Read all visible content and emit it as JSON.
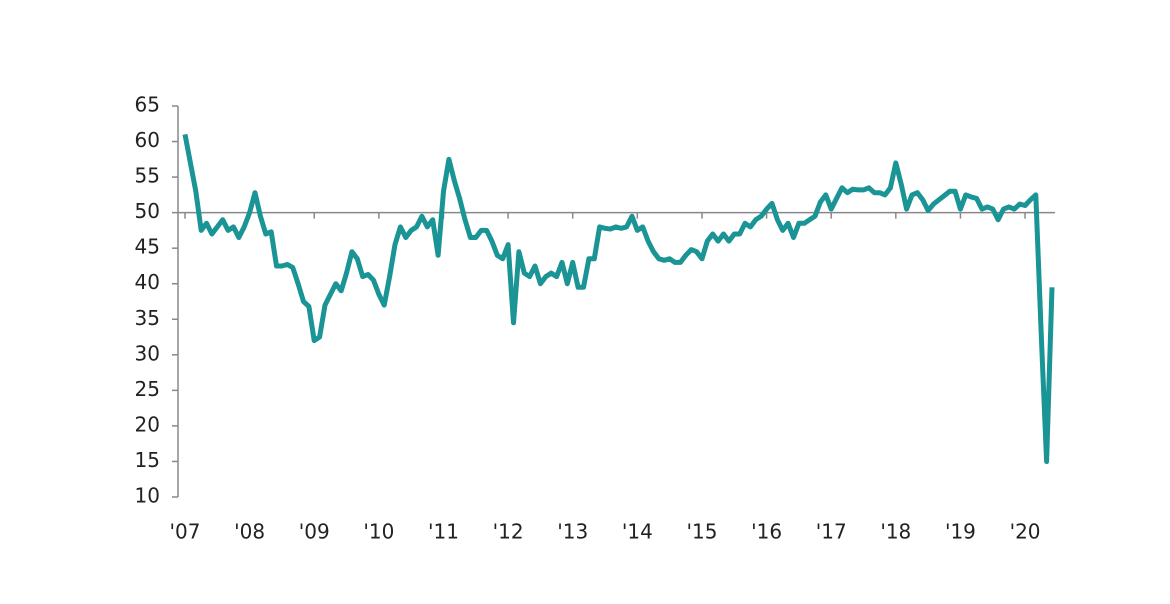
{
  "chart_data": {
    "type": "line",
    "categories": [
      "'07",
      null,
      null,
      null,
      null,
      null,
      null,
      null,
      null,
      null,
      null,
      null,
      "'08",
      null,
      null,
      null,
      null,
      null,
      null,
      null,
      null,
      null,
      null,
      null,
      "'09",
      null,
      null,
      null,
      null,
      null,
      null,
      null,
      null,
      null,
      null,
      null,
      "'10",
      null,
      null,
      null,
      null,
      null,
      null,
      null,
      null,
      null,
      null,
      null,
      "'11",
      null,
      null,
      null,
      null,
      null,
      null,
      null,
      null,
      null,
      null,
      null,
      "'12",
      null,
      null,
      null,
      null,
      null,
      null,
      null,
      null,
      null,
      null,
      null,
      "'13",
      null,
      null,
      null,
      null,
      null,
      null,
      null,
      null,
      null,
      null,
      null,
      "'14",
      null,
      null,
      null,
      null,
      null,
      null,
      null,
      null,
      null,
      null,
      null,
      "'15",
      null,
      null,
      null,
      null,
      null,
      null,
      null,
      null,
      null,
      null,
      null,
      "'16",
      null,
      null,
      null,
      null,
      null,
      null,
      null,
      null,
      null,
      null,
      null,
      "'17",
      null,
      null,
      null,
      null,
      null,
      null,
      null,
      null,
      null,
      null,
      null,
      "'18",
      null,
      null,
      null,
      null,
      null,
      null,
      null,
      null,
      null,
      null,
      null,
      "'19",
      null,
      null,
      null,
      null,
      null,
      null,
      null,
      null,
      null,
      null,
      null,
      "'20",
      null,
      null,
      null,
      null,
      null
    ],
    "values": [
      61,
      57,
      53,
      47.5,
      48.5,
      47,
      48,
      49,
      47.5,
      48,
      46.5,
      48,
      50,
      52.8,
      49.5,
      47,
      47.3,
      42.5,
      42.5,
      42.7,
      42.3,
      40,
      37.5,
      36.8,
      32,
      32.5,
      37,
      38.5,
      40,
      39,
      41.5,
      44.5,
      43.5,
      41,
      41.3,
      40.5,
      38.5,
      37,
      41,
      45.5,
      48,
      46.5,
      47.5,
      48,
      49.5,
      48,
      49,
      44,
      53,
      57.5,
      54.5,
      52,
      49,
      46.5,
      46.5,
      47.5,
      47.5,
      46,
      44,
      43.5,
      45.5,
      34.5,
      44.5,
      41.5,
      41,
      42.5,
      40,
      41,
      41.5,
      41,
      43,
      40,
      43,
      39.5,
      39.5,
      43.5,
      43.5,
      48,
      47.8,
      47.7,
      48,
      47.8,
      48,
      49.5,
      47.5,
      48,
      46,
      44.5,
      43.5,
      43.3,
      43.5,
      43,
      43,
      44,
      44.8,
      44.5,
      43.5,
      46,
      47,
      46,
      47,
      46,
      47,
      47,
      48.5,
      48,
      49,
      49.5,
      50.5,
      51.3,
      49,
      47.5,
      48.5,
      46.5,
      48.5,
      48.5,
      49,
      49.5,
      51.5,
      52.5,
      50.5,
      52,
      53.5,
      52.8,
      53.3,
      53.2,
      53.2,
      53.5,
      52.8,
      52.8,
      52.5,
      53.5,
      57,
      54,
      50.5,
      52.5,
      52.8,
      51.8,
      50.3,
      51.2,
      51.8,
      52.4,
      53,
      53,
      50.5,
      52.5,
      52.2,
      52,
      50.5,
      50.8,
      50.5,
      49,
      50.5,
      50.8,
      50.5,
      51.2,
      51,
      51.8,
      52.5,
      33,
      15,
      39.5
    ],
    "color": "#1a9494",
    "ylim": [
      10,
      65
    ],
    "yticks": [
      10,
      15,
      20,
      25,
      30,
      35,
      40,
      45,
      50,
      55,
      60,
      65
    ],
    "reference_line": 50
  }
}
